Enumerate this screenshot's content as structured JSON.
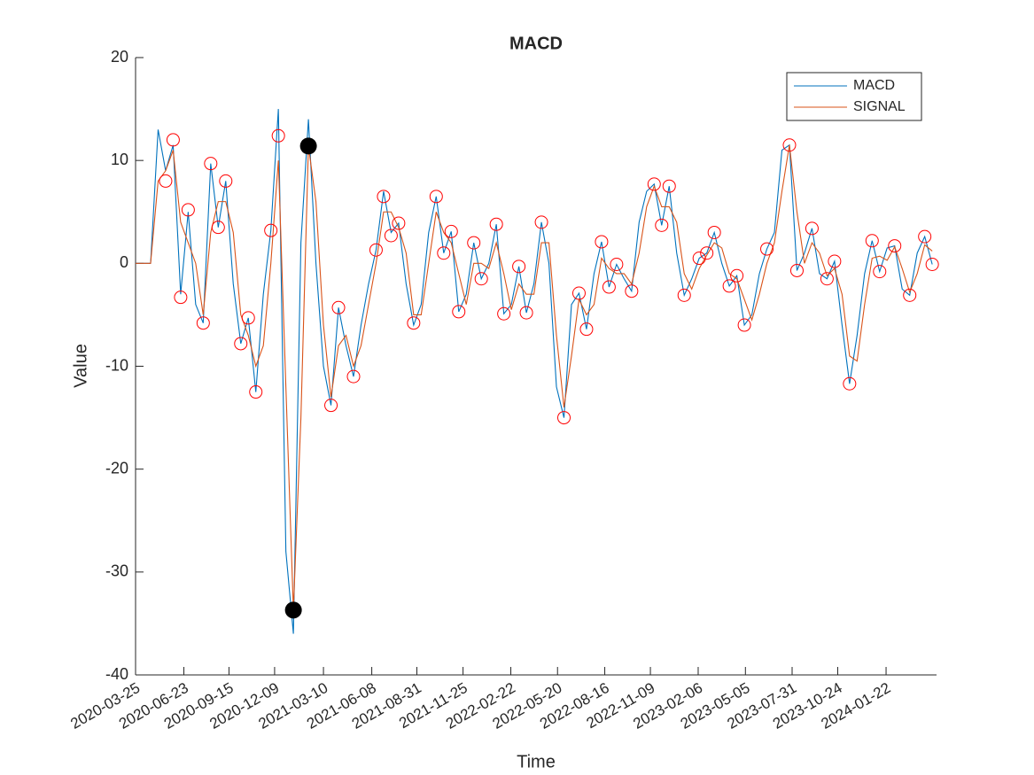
{
  "chart_data": {
    "type": "line",
    "title": "MACD",
    "x_label": "Time",
    "y_label": "Value",
    "x": [
      "2020-03-25",
      "2020-04-08",
      "2020-04-22",
      "2020-05-06",
      "2020-05-20",
      "2020-06-03",
      "2020-06-17",
      "2020-07-01",
      "2020-07-15",
      "2020-07-29",
      "2020-08-12",
      "2020-08-26",
      "2020-09-09",
      "2020-09-23",
      "2020-10-07",
      "2020-10-21",
      "2020-11-04",
      "2020-11-18",
      "2020-12-02",
      "2020-12-16",
      "2020-12-30",
      "2021-01-13",
      "2021-01-27",
      "2021-02-10",
      "2021-02-24",
      "2021-03-10",
      "2021-03-24",
      "2021-04-07",
      "2021-04-21",
      "2021-05-05",
      "2021-05-19",
      "2021-06-02",
      "2021-06-16",
      "2021-06-30",
      "2021-07-14",
      "2021-07-28",
      "2021-08-11",
      "2021-08-25",
      "2021-09-08",
      "2021-09-22",
      "2021-10-06",
      "2021-10-20",
      "2021-11-03",
      "2021-11-17",
      "2021-12-01",
      "2021-12-15",
      "2021-12-29",
      "2022-01-12",
      "2022-01-26",
      "2022-02-09",
      "2022-02-23",
      "2022-03-09",
      "2022-03-23",
      "2022-04-06",
      "2022-04-20",
      "2022-05-04",
      "2022-05-18",
      "2022-06-01",
      "2022-06-15",
      "2022-06-29",
      "2022-07-13",
      "2022-07-27",
      "2022-08-10",
      "2022-08-24",
      "2022-09-07",
      "2022-09-21",
      "2022-10-05",
      "2022-10-19",
      "2022-11-02",
      "2022-11-16",
      "2022-11-30",
      "2022-12-14",
      "2022-12-28",
      "2023-01-11",
      "2023-01-25",
      "2023-02-08",
      "2023-02-22",
      "2023-03-08",
      "2023-03-22",
      "2023-04-05",
      "2023-04-19",
      "2023-05-03",
      "2023-05-17",
      "2023-05-31",
      "2023-06-14",
      "2023-06-28",
      "2023-07-12",
      "2023-07-26",
      "2023-08-09",
      "2023-08-23",
      "2023-09-06",
      "2023-09-20",
      "2023-10-04",
      "2023-10-18",
      "2023-11-01",
      "2023-11-15",
      "2023-11-29",
      "2023-12-13",
      "2023-12-27",
      "2024-01-10",
      "2024-01-24",
      "2024-02-07",
      "2024-02-21",
      "2024-03-06",
      "2024-03-20",
      "2024-04-03",
      "2024-04-17"
    ],
    "series": [
      {
        "name": "MACD",
        "color": "#0072bd",
        "values": [
          0,
          0,
          0,
          13,
          9,
          11.5,
          -3,
          5,
          -4,
          -5.8,
          9.7,
          3.5,
          8,
          -2,
          -7.8,
          -5.3,
          -12.5,
          -3,
          3.2,
          15,
          -28,
          -36,
          2,
          14,
          0,
          -10,
          -13.8,
          -4.3,
          -8,
          -11,
          -6,
          -2,
          1.3,
          7,
          3,
          3.9,
          -2,
          -6,
          -4,
          3,
          6.5,
          1,
          3.1,
          -4.7,
          -3,
          2,
          -1.5,
          0,
          3.8,
          -4.9,
          -4,
          -0.3,
          -4.8,
          -2,
          4,
          0,
          -12,
          -15,
          -4,
          -2.9,
          -6.4,
          -1,
          2.1,
          -2.3,
          -0.1,
          -1.5,
          -2.7,
          4,
          7,
          7.7,
          3.7,
          7.5,
          1,
          -3.1,
          -1.5,
          0.5,
          1,
          3,
          0,
          -2.2,
          -1.2,
          -6,
          -5,
          -1,
          1.4,
          3,
          11,
          11.5,
          -0.7,
          1,
          3.4,
          -1,
          -1.5,
          0.2,
          -6,
          -11.7,
          -7,
          -1,
          2.2,
          -0.8,
          1.5,
          1.7,
          -2.5,
          -3.1,
          1,
          2.6,
          -0.1
        ]
      },
      {
        "name": "SIGNAL",
        "color": "#d95319",
        "values": [
          0,
          0,
          0,
          8,
          9,
          11,
          4,
          2,
          0,
          -5,
          3,
          6,
          6,
          3,
          -5,
          -7,
          -10,
          -8,
          0,
          10,
          -12,
          -33.7,
          -15,
          11.4,
          6,
          -6,
          -13,
          -8,
          -7,
          -10,
          -8,
          -4,
          0,
          5,
          5,
          3.5,
          1,
          -5,
          -5,
          0,
          5,
          3,
          2,
          -1,
          -4,
          0,
          0,
          -0.5,
          2,
          -1,
          -4.5,
          -2,
          -3,
          -3,
          2,
          2,
          -7,
          -14,
          -9,
          -3.5,
          -5,
          -4,
          0.5,
          -0.5,
          -1,
          -1,
          -2,
          1,
          5.5,
          7.5,
          5.5,
          5.5,
          4,
          -1,
          -2.5,
          -0.5,
          0.8,
          2,
          1.5,
          -1,
          -1.5,
          -3.5,
          -5.5,
          -3,
          0,
          2,
          7,
          11.5,
          5,
          0,
          2,
          1,
          -1.2,
          -0.5,
          -3,
          -9,
          -9.5,
          -4,
          0.5,
          0.7,
          0.3,
          1.6,
          -0.5,
          -2.8,
          -1,
          1.8,
          1.2
        ]
      }
    ],
    "crossovers": {
      "color": "#ff0000",
      "x": [
        "2020-05-20",
        "2020-06-03",
        "2020-06-17",
        "2020-07-01",
        "2020-07-29",
        "2020-08-12",
        "2020-08-26",
        "2020-09-09",
        "2020-10-07",
        "2020-10-21",
        "2020-11-04",
        "2020-12-02",
        "2020-12-16",
        "2021-03-24",
        "2021-04-07",
        "2021-05-05",
        "2021-06-16",
        "2021-06-30",
        "2021-07-14",
        "2021-07-28",
        "2021-08-25",
        "2021-10-06",
        "2021-10-20",
        "2021-11-03",
        "2021-11-17",
        "2021-12-15",
        "2021-12-29",
        "2022-01-26",
        "2022-02-09",
        "2022-03-09",
        "2022-03-23",
        "2022-04-20",
        "2022-06-01",
        "2022-06-29",
        "2022-07-13",
        "2022-08-10",
        "2022-08-24",
        "2022-09-07",
        "2022-10-05",
        "2022-11-16",
        "2022-11-30",
        "2022-12-14",
        "2023-01-11",
        "2023-02-08",
        "2023-02-22",
        "2023-03-08",
        "2023-04-05",
        "2023-04-19",
        "2023-05-03",
        "2023-06-14",
        "2023-07-26",
        "2023-08-09",
        "2023-09-06",
        "2023-10-04",
        "2023-10-18",
        "2023-11-15",
        "2023-12-27",
        "2024-01-10",
        "2024-02-07",
        "2024-03-06",
        "2024-04-03",
        "2024-04-17"
      ],
      "values": [
        8,
        12,
        -3.3,
        5.2,
        -5.8,
        9.7,
        3.5,
        8,
        -7.8,
        -5.3,
        -12.5,
        3.2,
        12.4,
        -13.8,
        -4.3,
        -11,
        1.3,
        6.5,
        2.7,
        3.9,
        -5.8,
        6.5,
        1,
        3.1,
        -4.7,
        2,
        -1.5,
        3.8,
        -4.9,
        -0.3,
        -4.8,
        4,
        -15,
        -2.9,
        -6.4,
        2.1,
        -2.3,
        -0.1,
        -2.7,
        7.7,
        3.7,
        7.5,
        -3.1,
        0.5,
        1,
        3,
        -2.2,
        -1.2,
        -6,
        1.4,
        11.5,
        -0.7,
        3.4,
        -1.5,
        0.2,
        -11.7,
        2.2,
        -0.8,
        1.7,
        -3.1,
        2.6,
        -0.1
      ]
    },
    "extremes": {
      "color": "#000000",
      "x": [
        "2021-01-13",
        "2021-02-10"
      ],
      "values": [
        -33.7,
        11.4
      ]
    },
    "xlim": [
      "2020-03-25",
      "2024-04-25"
    ],
    "xticks": [
      "2020-03-25",
      "2020-06-23",
      "2020-09-15",
      "2020-12-09",
      "2021-03-10",
      "2021-06-08",
      "2021-08-31",
      "2021-11-25",
      "2022-02-22",
      "2022-05-20",
      "2022-08-16",
      "2022-11-09",
      "2023-02-06",
      "2023-05-05",
      "2023-07-31",
      "2023-10-24",
      "2024-01-22"
    ],
    "ylim": [
      -40,
      20
    ],
    "yticks": [
      -40,
      -30,
      -20,
      -10,
      0,
      10,
      20
    ],
    "legend": "northeast",
    "grid": false
  }
}
